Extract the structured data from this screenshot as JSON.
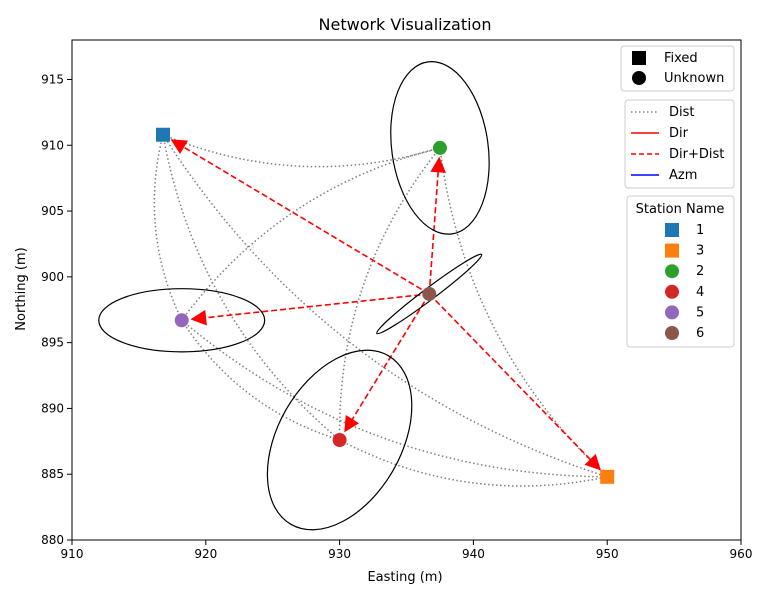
{
  "chart_data": {
    "type": "scatter",
    "title": "Network Visualization",
    "xlabel": "Easting (m)",
    "ylabel": "Northing (m)",
    "xlim": [
      910,
      960
    ],
    "ylim": [
      880,
      918
    ],
    "xticks": [
      910,
      920,
      930,
      940,
      950,
      960
    ],
    "yticks": [
      880,
      885,
      890,
      895,
      900,
      905,
      910,
      915
    ],
    "grid": false,
    "stations": [
      {
        "name": "1",
        "x": 916.8,
        "y": 910.8,
        "kind": "Fixed",
        "color": "#1f77b4"
      },
      {
        "name": "3",
        "x": 950.0,
        "y": 884.8,
        "kind": "Fixed",
        "color": "#ff7f0e"
      },
      {
        "name": "2",
        "x": 937.5,
        "y": 909.8,
        "kind": "Unknown",
        "color": "#2ca02c"
      },
      {
        "name": "4",
        "x": 930.0,
        "y": 887.6,
        "kind": "Unknown",
        "color": "#d62728"
      },
      {
        "name": "5",
        "x": 918.2,
        "y": 896.7,
        "kind": "Unknown",
        "color": "#9467bd"
      },
      {
        "name": "6",
        "x": 936.7,
        "y": 898.7,
        "kind": "Unknown",
        "color": "#8c564b"
      }
    ],
    "distance_observations": [
      [
        "1",
        "2"
      ],
      [
        "1",
        "3"
      ],
      [
        "1",
        "5"
      ],
      [
        "1",
        "4"
      ],
      [
        "2",
        "5"
      ],
      [
        "2",
        "3"
      ],
      [
        "2",
        "4"
      ],
      [
        "5",
        "4"
      ],
      [
        "5",
        "3"
      ],
      [
        "4",
        "3"
      ]
    ],
    "direction_observations": [
      [
        "6",
        "1"
      ],
      [
        "6",
        "2"
      ],
      [
        "6",
        "3"
      ],
      [
        "6",
        "4"
      ],
      [
        "6",
        "5"
      ]
    ],
    "error_ellipses": [
      {
        "station": "2",
        "a": 3.6,
        "b": 6.6,
        "angle_deg": -8
      },
      {
        "station": "4",
        "a": 4.6,
        "b": 7.4,
        "angle_deg": 30
      },
      {
        "station": "5",
        "a": 6.2,
        "b": 2.4,
        "angle_deg": 0
      },
      {
        "station": "6",
        "a": 4.9,
        "b": 0.45,
        "angle_deg": -37
      }
    ],
    "legend_markers": {
      "title": "",
      "entries": [
        {
          "label": "Fixed",
          "shape": "square"
        },
        {
          "label": "Unknown",
          "shape": "circle"
        }
      ]
    },
    "legend_observations": {
      "entries": [
        {
          "label": "Dist",
          "style": "dotted",
          "color": "#7f7f7f"
        },
        {
          "label": "Dir",
          "style": "solid",
          "color": "#ff0000"
        },
        {
          "label": "Dir+Dist",
          "style": "dashed",
          "color": "#ff0000"
        },
        {
          "label": "Azm",
          "style": "solid",
          "color": "#0000ff"
        }
      ]
    },
    "legend_stations": {
      "title": "Station Name",
      "placement": "right"
    }
  }
}
